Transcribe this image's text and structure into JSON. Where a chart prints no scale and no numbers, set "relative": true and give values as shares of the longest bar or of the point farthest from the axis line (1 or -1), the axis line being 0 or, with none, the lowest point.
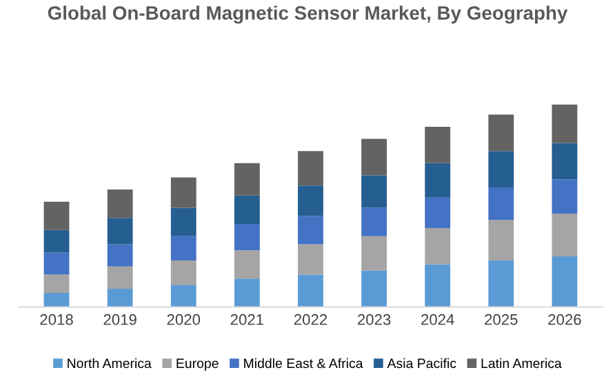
{
  "chart_data": {
    "type": "bar",
    "title": "Global On-Board Magnetic Sensor Market, By Geography",
    "stacked": true,
    "relative": true,
    "legend": "bottom",
    "categories": [
      "2018",
      "2019",
      "2020",
      "2021",
      "2022",
      "2023",
      "2024",
      "2025",
      "2026"
    ],
    "series": [
      {
        "name": "North America",
        "color": "#5b9bd5",
        "values": [
          0.07,
          0.09,
          0.11,
          0.14,
          0.16,
          0.18,
          0.21,
          0.23,
          0.25
        ]
      },
      {
        "name": "Europe",
        "color": "#a5a5a5",
        "values": [
          0.09,
          0.11,
          0.12,
          0.14,
          0.15,
          0.17,
          0.18,
          0.2,
          0.21
        ]
      },
      {
        "name": "Middle East & Africa",
        "color": "#4472c4",
        "values": [
          0.11,
          0.11,
          0.12,
          0.13,
          0.14,
          0.14,
          0.15,
          0.16,
          0.17
        ]
      },
      {
        "name": "Asia Pacific",
        "color": "#255e91",
        "values": [
          0.11,
          0.13,
          0.14,
          0.14,
          0.15,
          0.16,
          0.17,
          0.18,
          0.18
        ]
      },
      {
        "name": "Latin America",
        "color": "#636363",
        "values": [
          0.14,
          0.14,
          0.15,
          0.16,
          0.17,
          0.18,
          0.18,
          0.18,
          0.19
        ]
      }
    ]
  }
}
